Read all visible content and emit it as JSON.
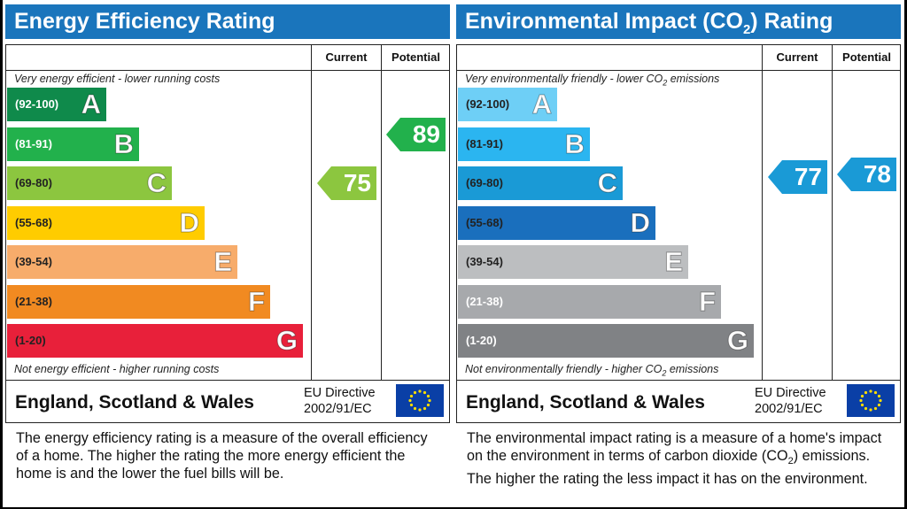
{
  "chart_data": [
    {
      "type": "table",
      "title": "Energy Efficiency Rating",
      "columns": [
        "Current",
        "Potential"
      ],
      "top_note": "Very energy efficient - lower running costs",
      "bottom_note": "Not energy efficient - higher running costs",
      "bands": [
        {
          "range": "(92-100)",
          "letter": "A",
          "color": "#0f8a4b"
        },
        {
          "range": "(81-91)",
          "letter": "B",
          "color": "#22b14c"
        },
        {
          "range": "(69-80)",
          "letter": "C",
          "color": "#8cc63f"
        },
        {
          "range": "(55-68)",
          "letter": "D",
          "color": "#ffcc00"
        },
        {
          "range": "(39-54)",
          "letter": "E",
          "color": "#f7ac6b"
        },
        {
          "range": "(21-38)",
          "letter": "F",
          "color": "#f18a21"
        },
        {
          "range": "(1-20)",
          "letter": "G",
          "color": "#e8203a"
        }
      ],
      "current": {
        "value": 75,
        "band": "C",
        "color": "#8cc63f"
      },
      "potential": {
        "value": 89,
        "band": "B",
        "color": "#22b14c"
      },
      "country": "England, Scotland & Wales",
      "directive": [
        "EU Directive",
        "2002/91/EC"
      ],
      "description": "The energy efficiency rating is a measure of the overall efficiency of a home. The higher the rating the more energy efficient the home is and the lower the fuel bills will be."
    },
    {
      "type": "table",
      "title": "Environmental Impact (CO2) Rating",
      "title_parts": [
        "Environmental Impact (CO",
        "2",
        ") Rating"
      ],
      "columns": [
        "Current",
        "Potential"
      ],
      "top_note": "Very environmentally friendly - lower CO2 emissions",
      "top_note_parts": [
        "Very environmentally friendly - lower CO",
        "2",
        " emissions"
      ],
      "bottom_note": "Not environmentally friendly - higher CO2 emissions",
      "bottom_note_parts": [
        "Not environmentally friendly - higher CO",
        "2",
        " emissions"
      ],
      "bands": [
        {
          "range": "(92-100)",
          "letter": "A",
          "color": "#6ecff6"
        },
        {
          "range": "(81-91)",
          "letter": "B",
          "color": "#2bb5f0"
        },
        {
          "range": "(69-80)",
          "letter": "C",
          "color": "#1a9ad6"
        },
        {
          "range": "(55-68)",
          "letter": "D",
          "color": "#1a6fbd"
        },
        {
          "range": "(39-54)",
          "letter": "E",
          "color": "#bcbec0"
        },
        {
          "range": "(21-38)",
          "letter": "F",
          "color": "#a7a9ac"
        },
        {
          "range": "(1-20)",
          "letter": "G",
          "color": "#808285"
        }
      ],
      "current": {
        "value": 77,
        "band": "C",
        "color": "#1a9ad6"
      },
      "potential": {
        "value": 78,
        "band": "C",
        "color": "#1a9ad6"
      },
      "country": "England, Scotland & Wales",
      "directive": [
        "EU Directive",
        "2002/91/EC"
      ],
      "description_parts": [
        "The environmental impact rating is a measure of a home's impact on the environment in terms of carbon dioxide (CO",
        "2",
        ") emissions. The higher the rating the less impact it has on the environment."
      ]
    }
  ]
}
